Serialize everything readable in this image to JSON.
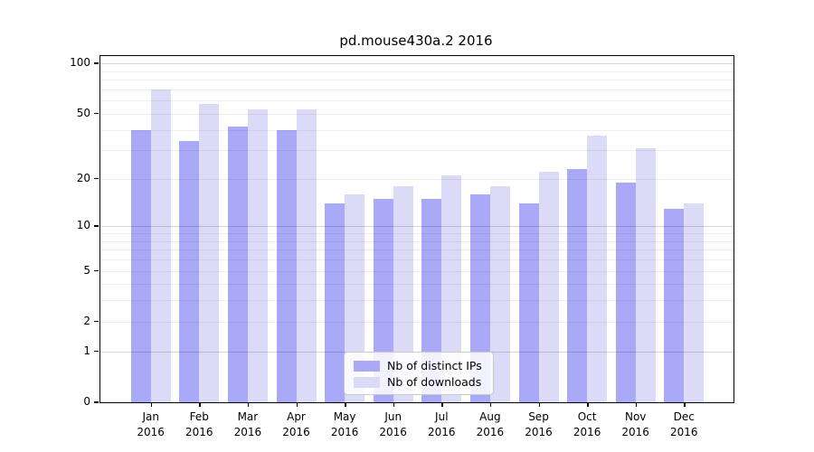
{
  "title": "pd.mouse430a.2 2016",
  "chart_data": {
    "type": "bar",
    "title": "pd.mouse430a.2 2016",
    "categories": [
      "Jan",
      "Feb",
      "Mar",
      "Apr",
      "May",
      "Jun",
      "Jul",
      "Aug",
      "Sep",
      "Oct",
      "Nov",
      "Dec"
    ],
    "category_year": "2016",
    "series": [
      {
        "name": "Nb of distinct IPs",
        "color": "#a9a9f7",
        "values": [
          40,
          34,
          42,
          40,
          14,
          15,
          15,
          16,
          14,
          23,
          19,
          13
        ]
      },
      {
        "name": "Nb of downloads",
        "color": "#dbdbf8",
        "values": [
          70,
          57,
          53,
          53,
          16,
          18,
          21,
          18,
          22,
          37,
          31,
          14
        ]
      }
    ],
    "yscale": "log1p",
    "y_ticks": [
      100,
      50,
      20,
      10,
      5,
      2,
      1,
      0
    ],
    "ylim": [
      0,
      110
    ],
    "grid": true,
    "legend_position": "bottom-center"
  }
}
